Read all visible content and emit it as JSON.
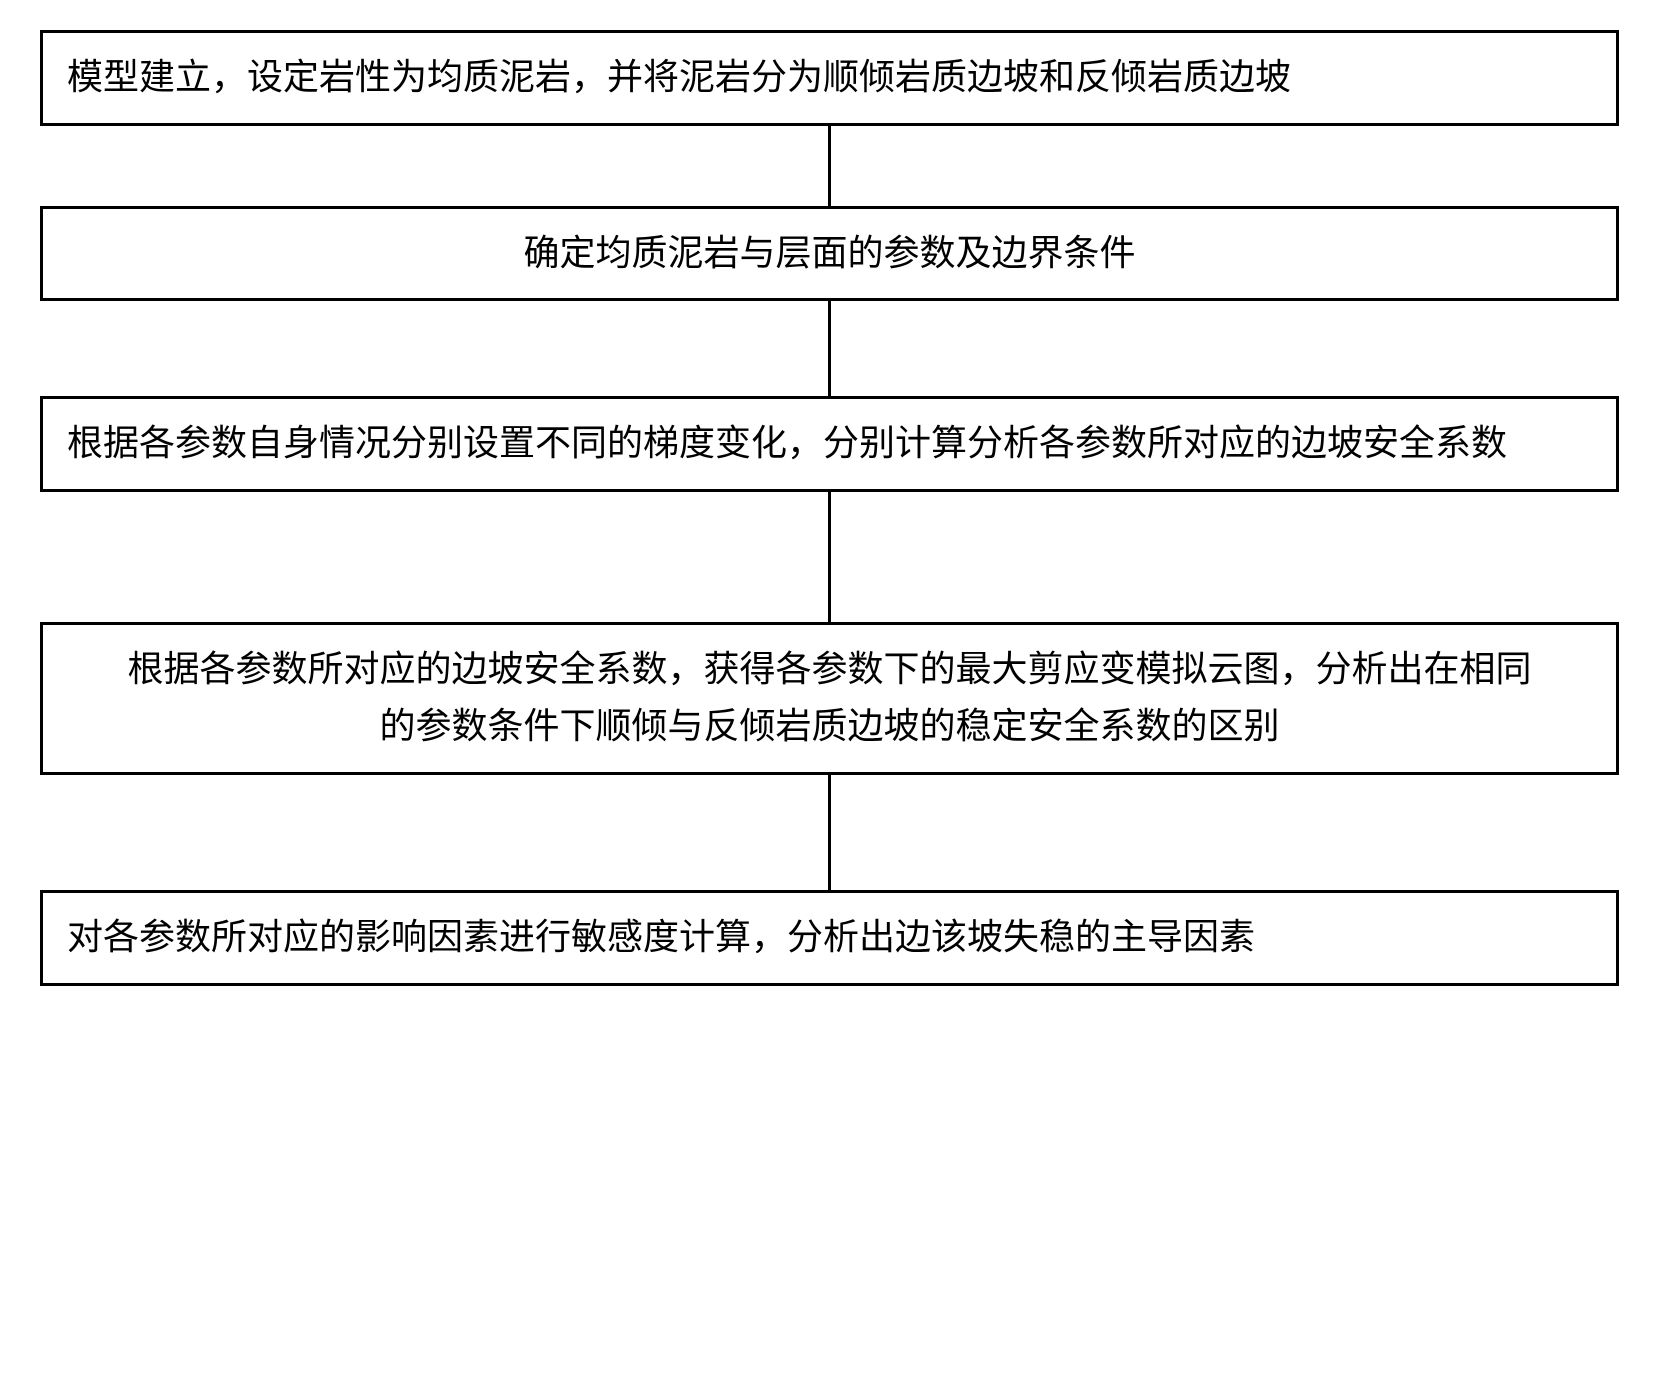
{
  "flowchart": {
    "type": "flowchart",
    "direction": "vertical",
    "background_color": "#ffffff",
    "border_color": "#000000",
    "border_width": 3,
    "text_color": "#000000",
    "font_size": 36,
    "font_family": "KaiTi",
    "box_width_pct": 100,
    "connector_width": 3,
    "nodes": [
      {
        "id": "step1",
        "text": "模型建立，设定岩性为均质泥岩，并将泥岩分为顺倾岩质边坡和反倾岩质边坡",
        "align": "left",
        "lines": 1,
        "connector_after_height": 80
      },
      {
        "id": "step2",
        "text": "确定均质泥岩与层面的参数及边界条件",
        "align": "center",
        "lines": 1,
        "connector_after_height": 95
      },
      {
        "id": "step3",
        "text": "根据各参数自身情况分别设置不同的梯度变化，分别计算分析各参数所对应的边坡安全系数",
        "align": "left",
        "lines": 2,
        "connector_after_height": 130
      },
      {
        "id": "step4",
        "text": "根据各参数所对应的边坡安全系数，获得各参数下的最大剪应变模拟云图，分析出在相同的参数条件下顺倾与反倾岩质边坡的稳定安全系数的区别",
        "align": "center",
        "lines": 2,
        "connector_after_height": 115
      },
      {
        "id": "step5",
        "text": "对各参数所对应的影响因素进行敏感度计算，分析出边该坡失稳的主导因素",
        "align": "left",
        "lines": 1,
        "connector_after_height": 0
      }
    ],
    "edges": [
      {
        "from": "step1",
        "to": "step2"
      },
      {
        "from": "step2",
        "to": "step3"
      },
      {
        "from": "step3",
        "to": "step4"
      },
      {
        "from": "step4",
        "to": "step5"
      }
    ]
  }
}
